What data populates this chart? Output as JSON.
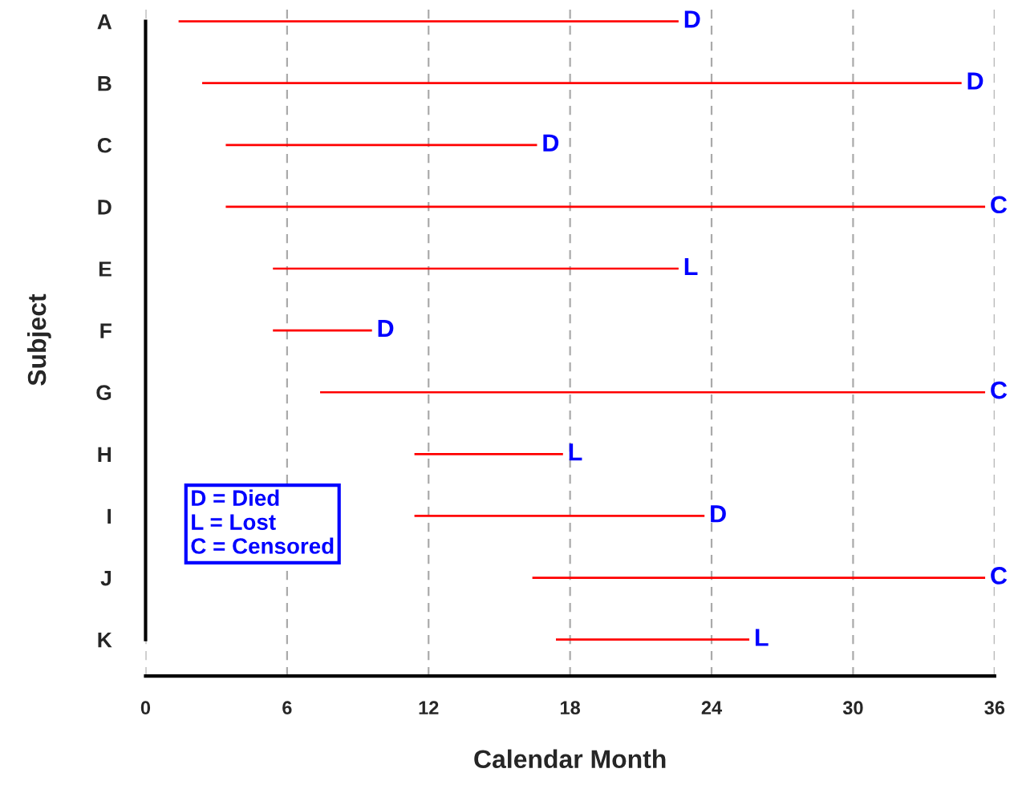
{
  "chart_data": {
    "type": "bar",
    "orientation": "horizontal",
    "xlabel": "Calendar Month",
    "ylabel": "Subject",
    "categories": [
      "A",
      "B",
      "C",
      "D",
      "E",
      "F",
      "G",
      "H",
      "I",
      "J",
      "K"
    ],
    "base": [
      1.4,
      2.4,
      3.4,
      3.4,
      5.4,
      5.4,
      7.4,
      11.4,
      11.4,
      16.4,
      17.4
    ],
    "values": [
      21.2,
      32.2,
      13.2,
      32.2,
      17.2,
      4.2,
      28.2,
      6.3,
      12.3,
      19.2,
      8.2
    ],
    "value_labels": [
      "D",
      "D",
      "D",
      "C",
      "L",
      "D",
      "C",
      "L",
      "D",
      "C",
      "L"
    ],
    "color": "#ff0000",
    "xlim": [
      0,
      36
    ],
    "xticks": [
      0,
      6,
      12,
      18,
      24,
      30,
      36
    ],
    "grid": "x",
    "annotations": [
      "D = Died\nL = Lost\nC = Censored"
    ]
  }
}
